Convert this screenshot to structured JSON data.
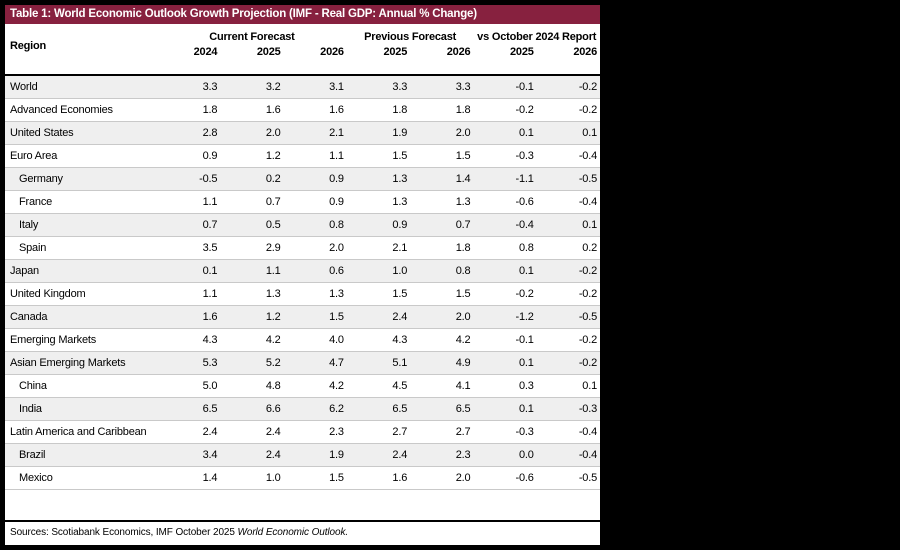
{
  "title": "Table 1: World Economic Outlook Growth Projection (IMF - Real GDP: Annual % Change)",
  "colors": {
    "header_bg": "#87213F",
    "row_stripe": "#EFEFEF",
    "page_bg": "#000000"
  },
  "table": {
    "region_header": "Region",
    "groups": [
      {
        "label": "Current Forecast",
        "cols": [
          "2024",
          "2025",
          "2026"
        ]
      },
      {
        "label": "Previous Forecast",
        "cols": [
          "2025",
          "2026"
        ]
      },
      {
        "label": "vs October 2024 Report",
        "cols": [
          "2025",
          "2026"
        ]
      }
    ],
    "rows": [
      {
        "region": "World",
        "indent": 0,
        "values": [
          "3.3",
          "3.2",
          "3.1",
          "3.3",
          "3.3",
          "-0.1",
          "-0.2"
        ]
      },
      {
        "region": "Advanced Economies",
        "indent": 0,
        "values": [
          "1.8",
          "1.6",
          "1.6",
          "1.8",
          "1.8",
          "-0.2",
          "-0.2"
        ]
      },
      {
        "region": "United States",
        "indent": 0,
        "values": [
          "2.8",
          "2.0",
          "2.1",
          "1.9",
          "2.0",
          "0.1",
          "0.1"
        ]
      },
      {
        "region": "Euro Area",
        "indent": 0,
        "values": [
          "0.9",
          "1.2",
          "1.1",
          "1.5",
          "1.5",
          "-0.3",
          "-0.4"
        ]
      },
      {
        "region": "Germany",
        "indent": 1,
        "values": [
          "-0.5",
          "0.2",
          "0.9",
          "1.3",
          "1.4",
          "-1.1",
          "-0.5"
        ]
      },
      {
        "region": "France",
        "indent": 1,
        "values": [
          "1.1",
          "0.7",
          "0.9",
          "1.3",
          "1.3",
          "-0.6",
          "-0.4"
        ]
      },
      {
        "region": "Italy",
        "indent": 1,
        "values": [
          "0.7",
          "0.5",
          "0.8",
          "0.9",
          "0.7",
          "-0.4",
          "0.1"
        ]
      },
      {
        "region": "Spain",
        "indent": 1,
        "values": [
          "3.5",
          "2.9",
          "2.0",
          "2.1",
          "1.8",
          "0.8",
          "0.2"
        ]
      },
      {
        "region": "Japan",
        "indent": 0,
        "values": [
          "0.1",
          "1.1",
          "0.6",
          "1.0",
          "0.8",
          "0.1",
          "-0.2"
        ]
      },
      {
        "region": "United Kingdom",
        "indent": 0,
        "values": [
          "1.1",
          "1.3",
          "1.3",
          "1.5",
          "1.5",
          "-0.2",
          "-0.2"
        ]
      },
      {
        "region": "Canada",
        "indent": 0,
        "values": [
          "1.6",
          "1.2",
          "1.5",
          "2.4",
          "2.0",
          "-1.2",
          "-0.5"
        ]
      },
      {
        "region": "Emerging Markets",
        "indent": 0,
        "values": [
          "4.3",
          "4.2",
          "4.0",
          "4.3",
          "4.2",
          "-0.1",
          "-0.2"
        ]
      },
      {
        "region": "Asian Emerging Markets",
        "indent": 0,
        "values": [
          "5.3",
          "5.2",
          "4.7",
          "5.1",
          "4.9",
          "0.1",
          "-0.2"
        ]
      },
      {
        "region": "China",
        "indent": 1,
        "values": [
          "5.0",
          "4.8",
          "4.2",
          "4.5",
          "4.1",
          "0.3",
          "0.1"
        ]
      },
      {
        "region": "India",
        "indent": 1,
        "values": [
          "6.5",
          "6.6",
          "6.2",
          "6.5",
          "6.5",
          "0.1",
          "-0.3"
        ]
      },
      {
        "region": "Latin America and Caribbean",
        "indent": 0,
        "values": [
          "2.4",
          "2.4",
          "2.3",
          "2.7",
          "2.7",
          "-0.3",
          "-0.4"
        ]
      },
      {
        "region": "Brazil",
        "indent": 1,
        "values": [
          "3.4",
          "2.4",
          "1.9",
          "2.4",
          "2.3",
          "0.0",
          "-0.4"
        ]
      },
      {
        "region": "Mexico",
        "indent": 1,
        "values": [
          "1.4",
          "1.0",
          "1.5",
          "1.6",
          "2.0",
          "-0.6",
          "-0.5"
        ]
      }
    ]
  },
  "footer": {
    "sources_prefix": "Sources: Scotiabank Economics, IMF October 2025 ",
    "sources_italic": "World Economic Outlook."
  }
}
